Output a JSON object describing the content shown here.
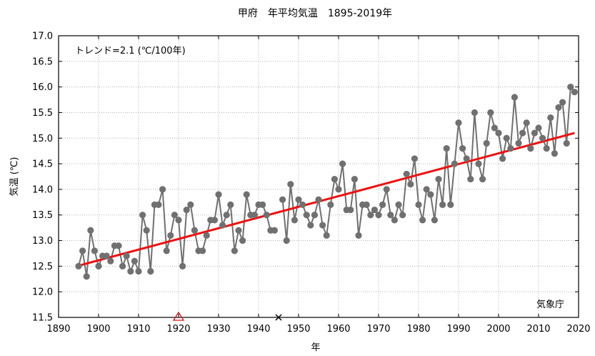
{
  "chart_data": {
    "type": "line",
    "title": "甲府　年平均気温　1895-2019年",
    "xlabel": "年",
    "ylabel": "気温 (℃)",
    "xlim": [
      1890,
      2020
    ],
    "ylim": [
      11.5,
      17.0
    ],
    "x_ticks": [
      1890,
      1900,
      1910,
      1920,
      1930,
      1940,
      1950,
      1960,
      1970,
      1980,
      1990,
      2000,
      2010,
      2020
    ],
    "y_ticks": [
      11.5,
      12.0,
      12.5,
      13.0,
      13.5,
      14.0,
      14.5,
      15.0,
      15.5,
      16.0,
      16.5,
      17.0
    ],
    "y_tick_labels": [
      "11.5",
      "12.0",
      "12.5",
      "13.0",
      "13.5",
      "14.0",
      "14.5",
      "15.0",
      "15.5",
      "16.0",
      "16.5",
      "17.0"
    ],
    "grid": true,
    "trend_label": "トレンド=2.1 (℃/100年)",
    "source_label": "気象庁",
    "series": [
      {
        "name": "年平均気温",
        "color": "#707070",
        "x": [
          1895,
          1896,
          1897,
          1898,
          1899,
          1900,
          1901,
          1902,
          1903,
          1904,
          1905,
          1906,
          1907,
          1908,
          1909,
          1910,
          1911,
          1912,
          1913,
          1914,
          1915,
          1916,
          1917,
          1918,
          1919,
          1920,
          1921,
          1922,
          1923,
          1924,
          1925,
          1926,
          1927,
          1928,
          1929,
          1930,
          1931,
          1932,
          1933,
          1934,
          1935,
          1936,
          1937,
          1938,
          1939,
          1940,
          1941,
          1942,
          1943,
          1944,
          1945,
          1946,
          1947,
          1948,
          1949,
          1950,
          1951,
          1952,
          1953,
          1954,
          1955,
          1956,
          1957,
          1958,
          1959,
          1960,
          1961,
          1962,
          1963,
          1964,
          1965,
          1966,
          1967,
          1968,
          1969,
          1970,
          1971,
          1972,
          1973,
          1974,
          1975,
          1976,
          1977,
          1978,
          1979,
          1980,
          1981,
          1982,
          1983,
          1984,
          1985,
          1986,
          1987,
          1988,
          1989,
          1990,
          1991,
          1992,
          1993,
          1994,
          1995,
          1996,
          1997,
          1998,
          1999,
          2000,
          2001,
          2002,
          2003,
          2004,
          2005,
          2006,
          2007,
          2008,
          2009,
          2010,
          2011,
          2012,
          2013,
          2014,
          2015,
          2016,
          2017,
          2018,
          2019
        ],
        "values": [
          12.5,
          12.8,
          12.3,
          13.2,
          12.8,
          12.5,
          12.7,
          12.7,
          12.6,
          12.9,
          12.9,
          12.5,
          12.7,
          12.4,
          12.6,
          12.4,
          13.5,
          13.2,
          12.4,
          13.7,
          13.7,
          14.0,
          12.8,
          13.1,
          13.5,
          13.4,
          12.5,
          13.6,
          13.7,
          13.2,
          12.8,
          12.8,
          13.1,
          13.4,
          13.4,
          13.9,
          13.3,
          13.5,
          13.7,
          12.8,
          13.2,
          13.0,
          13.9,
          13.5,
          13.5,
          13.7,
          13.7,
          13.5,
          13.2,
          13.2,
          null,
          13.8,
          13.0,
          14.1,
          13.4,
          13.8,
          13.7,
          13.5,
          13.3,
          13.5,
          13.8,
          13.3,
          13.1,
          13.7,
          14.2,
          14.0,
          14.5,
          13.6,
          13.6,
          14.2,
          13.1,
          13.7,
          13.7,
          13.5,
          13.6,
          13.5,
          13.7,
          14.0,
          13.5,
          13.4,
          13.7,
          13.5,
          14.3,
          14.1,
          14.6,
          13.7,
          13.4,
          14.0,
          13.9,
          13.4,
          14.2,
          13.7,
          14.8,
          13.7,
          14.5,
          15.3,
          14.8,
          14.6,
          14.2,
          15.5,
          14.5,
          14.2,
          14.9,
          15.5,
          15.2,
          15.1,
          14.6,
          15.0,
          14.8,
          15.8,
          14.9,
          15.1,
          15.3,
          14.8,
          15.1,
          15.2,
          15.0,
          14.8,
          15.4,
          14.7,
          15.6,
          15.7,
          14.9,
          16.0,
          15.9
        ]
      },
      {
        "name": "トレンド",
        "color": "#ee1111",
        "x": [
          1895,
          2019
        ],
        "values": [
          12.51,
          15.1
        ]
      }
    ],
    "markers": [
      {
        "name": "移転",
        "symbol": "triangle",
        "x": 1920,
        "y": 11.5,
        "color": "#dd1111"
      },
      {
        "name": "欠測",
        "symbol": "cross",
        "x": 1945,
        "y": 11.5,
        "color": "#000000"
      }
    ]
  }
}
